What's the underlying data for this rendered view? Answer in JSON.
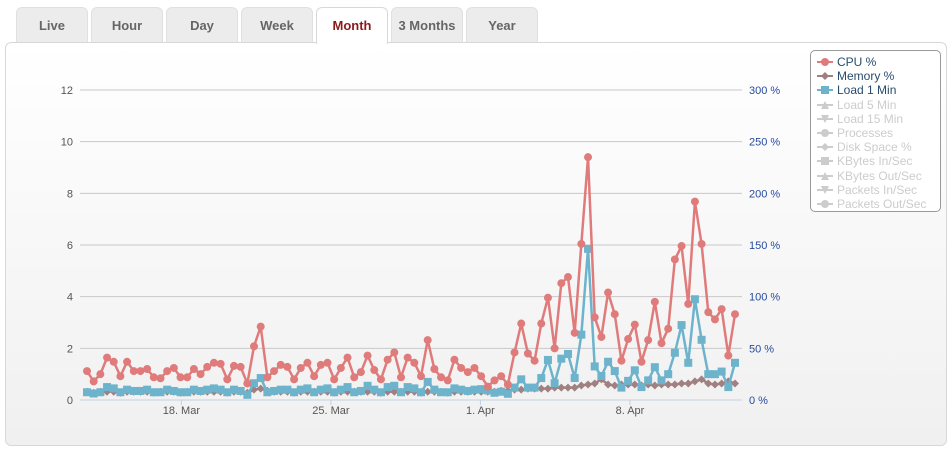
{
  "tabs": [
    {
      "label": "Live"
    },
    {
      "label": "Hour"
    },
    {
      "label": "Day"
    },
    {
      "label": "Week"
    },
    {
      "label": "Month",
      "active": true
    },
    {
      "label": "3 Months"
    },
    {
      "label": "Year"
    }
  ],
  "colors": {
    "cpu": "#e07b7b",
    "memory": "#a08080",
    "load": "#6eb3cc",
    "inactive": "#cccccc",
    "active_tab": "#8b1a1a",
    "axis_right": "#274b9c"
  },
  "legend": [
    {
      "label": "CPU %",
      "active": true,
      "marker": "circle"
    },
    {
      "label": "Memory %",
      "active": true,
      "marker": "diamond"
    },
    {
      "label": "Load 1 Min",
      "active": true,
      "marker": "square"
    },
    {
      "label": "Load 5 Min",
      "active": false,
      "marker": "triangle"
    },
    {
      "label": "Load 15 Min",
      "active": false,
      "marker": "triangle-down"
    },
    {
      "label": "Processes",
      "active": false,
      "marker": "circle"
    },
    {
      "label": "Disk Space %",
      "active": false,
      "marker": "diamond"
    },
    {
      "label": "KBytes In/Sec",
      "active": false,
      "marker": "square"
    },
    {
      "label": "KBytes Out/Sec",
      "active": false,
      "marker": "triangle"
    },
    {
      "label": "Packets In/Sec",
      "active": false,
      "marker": "triangle-down"
    },
    {
      "label": "Packets Out/Sec",
      "active": false,
      "marker": "circle"
    }
  ],
  "chart_data": {
    "type": "line",
    "x_range": [
      "Mar 13 14:00",
      "Apr 12 22:00"
    ],
    "x_ticks": [
      "18. Mar",
      "25. Mar",
      "1. Apr",
      "8. Apr"
    ],
    "x_tick_dates": [
      "Mar 18 00:00",
      "Mar 25 00:00",
      "Apr 1 00:00",
      "Apr 8 00:00"
    ],
    "y_left": {
      "range": [
        0,
        12
      ],
      "ticks": [
        "0",
        "2",
        "4",
        "6",
        "8",
        "10",
        "12"
      ]
    },
    "y_right": {
      "range": [
        0,
        300
      ],
      "ticks": [
        "0 %",
        "50 %",
        "100 %",
        "150 %",
        "200 %",
        "250 %",
        "300 %"
      ]
    },
    "grid": true,
    "legend_position": "top-right",
    "series": [
      {
        "name": "CPU %",
        "axis": "right",
        "values": [
          28,
          18,
          25,
          41,
          37,
          23,
          37,
          28,
          28,
          30,
          22,
          21,
          28,
          31,
          22,
          22,
          30,
          25,
          32,
          36,
          35,
          20,
          33,
          32,
          16,
          52,
          71,
          22,
          28,
          34,
          32,
          20,
          31,
          36,
          23,
          34,
          36,
          20,
          31,
          41,
          22,
          27,
          43,
          29,
          20,
          39,
          46,
          22,
          41,
          36,
          23,
          58,
          30,
          22,
          19,
          39,
          31,
          27,
          31,
          23,
          13,
          19,
          23,
          15,
          46,
          74,
          45,
          38,
          74,
          99,
          50,
          113,
          119,
          65,
          151,
          235,
          80,
          61,
          104,
          83,
          38,
          59,
          73,
          37,
          58,
          95,
          55,
          69,
          136,
          149,
          93,
          192,
          151,
          85,
          78,
          88,
          43,
          83
        ]
      },
      {
        "name": "Memory %",
        "axis": "right",
        "values": [
          8,
          7,
          8,
          8,
          8,
          7,
          8,
          8,
          8,
          8,
          7,
          8,
          8,
          8,
          7,
          8,
          8,
          8,
          8,
          8,
          8,
          7,
          8,
          8,
          7,
          10,
          11,
          9,
          8,
          8,
          8,
          7,
          8,
          8,
          8,
          8,
          8,
          7,
          8,
          8,
          8,
          8,
          8,
          8,
          7,
          8,
          8,
          8,
          8,
          8,
          7,
          8,
          8,
          8,
          7,
          8,
          8,
          8,
          8,
          8,
          8,
          8,
          9,
          9,
          10,
          10,
          11,
          11,
          11,
          11,
          12,
          12,
          12,
          12,
          14,
          15,
          16,
          20,
          15,
          14,
          15,
          15,
          15,
          14,
          15,
          14,
          15,
          15,
          15,
          16,
          16,
          18,
          20,
          16,
          15,
          16,
          18,
          16
        ]
      },
      {
        "name": "Load 1 Min",
        "axis": "left",
        "values": [
          0.3,
          0.25,
          0.3,
          0.5,
          0.45,
          0.3,
          0.4,
          0.35,
          0.35,
          0.4,
          0.3,
          0.3,
          0.4,
          0.35,
          0.3,
          0.3,
          0.4,
          0.35,
          0.4,
          0.45,
          0.4,
          0.3,
          0.4,
          0.35,
          0.2,
          0.65,
          0.85,
          0.3,
          0.35,
          0.4,
          0.4,
          0.3,
          0.4,
          0.45,
          0.3,
          0.4,
          0.45,
          0.3,
          0.4,
          0.5,
          0.3,
          0.35,
          0.55,
          0.4,
          0.3,
          0.5,
          0.55,
          0.3,
          0.5,
          0.45,
          0.3,
          0.7,
          0.4,
          0.3,
          0.3,
          0.45,
          0.4,
          0.35,
          0.4,
          0.42,
          0.37,
          0.28,
          0.32,
          0.24,
          0.48,
          0.8,
          0.48,
          0.48,
          0.85,
          1.55,
          0.65,
          1.6,
          1.78,
          0.85,
          2.53,
          5.85,
          1.3,
          0.93,
          1.48,
          1.12,
          0.48,
          0.74,
          1.15,
          0.5,
          0.76,
          1.27,
          0.76,
          1.0,
          1.83,
          2.9,
          1.44,
          3.9,
          2.33,
          1.0,
          1.0,
          1.1,
          0.5,
          1.44
        ]
      }
    ]
  }
}
